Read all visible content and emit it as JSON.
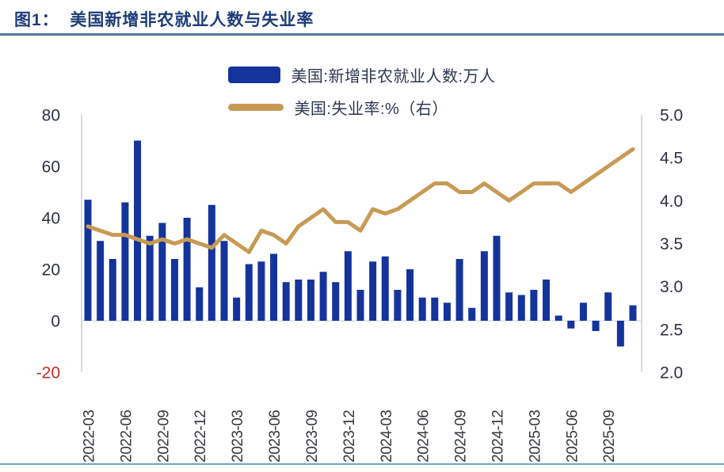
{
  "figure": {
    "title": "图1：  美国新增非农就业人数与失业率"
  },
  "colors": {
    "bar": "#14349C",
    "line": "#C79A54",
    "title": "#1E3C78",
    "axis_label": "#2E3240",
    "negative_axis_label": "#CB2A2A",
    "axis_line": "#C9CCD4",
    "zero_line": "#D8DAE0",
    "x_label": "#36383F",
    "title_rule": "#54749E",
    "bottom_rule": "#6FA3CF"
  },
  "chart_data": {
    "type": "bar",
    "subtype": "bar-line-combo",
    "title": "图1：  美国新增非农就业人数与失业率",
    "legend_position": "top-center",
    "grid": "zero-line-only",
    "x": [
      "2022-03",
      "2022-04",
      "2022-05",
      "2022-06",
      "2022-07",
      "2022-08",
      "2022-09",
      "2022-10",
      "2022-11",
      "2022-12",
      "2023-01",
      "2023-02",
      "2023-03",
      "2023-04",
      "2023-05",
      "2023-06",
      "2023-07",
      "2023-08",
      "2023-09",
      "2023-10",
      "2023-11",
      "2023-12",
      "2024-01",
      "2024-02",
      "2024-03",
      "2024-04",
      "2024-05",
      "2024-06",
      "2024-07",
      "2024-08",
      "2024-09",
      "2024-10",
      "2024-11",
      "2024-12",
      "2025-01",
      "2025-02",
      "2025-03",
      "2025-04",
      "2025-05",
      "2025-06",
      "2025-07",
      "2025-08",
      "2025-09",
      "2025-10",
      "2025-11"
    ],
    "x_tick_labels": [
      "2022-03",
      "2022-06",
      "2022-09",
      "2022-12",
      "2023-03",
      "2023-06",
      "2023-09",
      "2023-12",
      "2024-03",
      "2024-06",
      "2024-09",
      "2024-12",
      "2025-03",
      "2025-06",
      "2025-09"
    ],
    "series": [
      {
        "name": "美国:新增非农就业人数:万人",
        "type": "bar",
        "axis": "left",
        "color": "#14349C",
        "values": [
          47,
          31,
          24,
          46,
          70,
          33,
          38,
          24,
          40,
          13,
          45,
          31,
          9,
          22,
          23,
          26,
          15,
          16,
          16,
          19,
          15,
          27,
          12,
          23,
          25,
          12,
          20,
          9,
          9,
          7,
          24,
          5,
          27,
          33,
          11,
          10,
          12,
          16,
          2,
          -3,
          7,
          -4,
          11,
          -10,
          6
        ]
      },
      {
        "name": "美国:失业率:%（右）",
        "type": "line",
        "axis": "right",
        "color": "#C79A54",
        "values": [
          3.7,
          3.65,
          3.6,
          3.6,
          3.55,
          3.5,
          3.55,
          3.5,
          3.55,
          3.5,
          3.45,
          3.6,
          3.5,
          3.4,
          3.65,
          3.6,
          3.5,
          3.7,
          3.8,
          3.9,
          3.75,
          3.75,
          3.65,
          3.9,
          3.85,
          3.9,
          4.0,
          4.1,
          4.2,
          4.2,
          4.1,
          4.1,
          4.2,
          4.1,
          4.0,
          4.1,
          4.2,
          4.2,
          4.2,
          4.1,
          4.2,
          4.3,
          4.4,
          4.5,
          4.6
        ]
      }
    ],
    "left_axis": {
      "min": -20,
      "max": 80,
      "ticks": [
        "80",
        "60",
        "40",
        "20",
        "0",
        "-20"
      ]
    },
    "right_axis": {
      "min": 2.0,
      "max": 5.0,
      "ticks": [
        "5.0",
        "4.5",
        "4.0",
        "3.5",
        "3.0",
        "2.5",
        "2.0"
      ]
    }
  }
}
